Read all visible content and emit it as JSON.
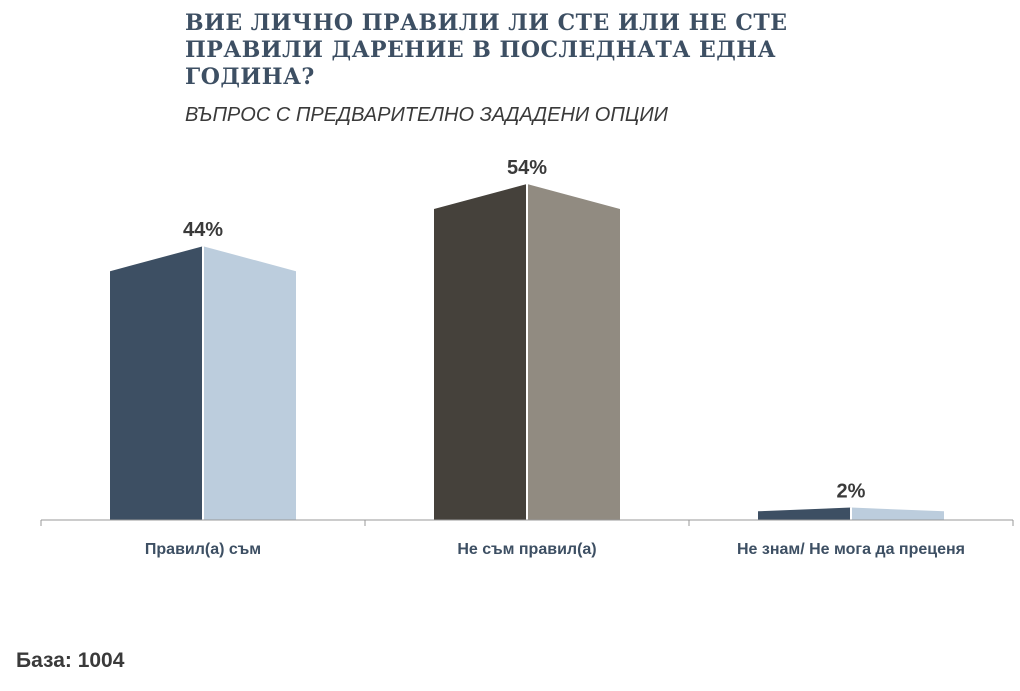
{
  "chart_data": {
    "type": "bar",
    "title": "ВИЕ ЛИЧНО ПРАВИЛИ ЛИ СТЕ ИЛИ НЕ СТЕ ПРАВИЛИ ДАРЕНИЕ В ПОСЛЕДНАТА ЕДНА ГОДИНА?",
    "subtitle": "ВЪПРОС С ПРЕДВАРИТЕЛНО ЗАДАДЕНИ ОПЦИИ",
    "categories": [
      "Правил(а) съм",
      "Не съм правил(а)",
      "Не знам/ Не мога да преценя"
    ],
    "values": [
      44,
      54,
      2
    ],
    "value_labels": [
      "44%",
      "54%",
      "2%"
    ],
    "ylim": [
      0,
      54
    ],
    "grid": false,
    "legend": "none",
    "colors": [
      {
        "dark": "#3d4f63",
        "light": "#bccddd"
      },
      {
        "dark": "#45413b",
        "light": "#918b81"
      },
      {
        "dark": "#3d4f63",
        "light": "#bccddd"
      }
    ],
    "axis_color": "#999999"
  },
  "footer": {
    "base": "База: 1004"
  }
}
